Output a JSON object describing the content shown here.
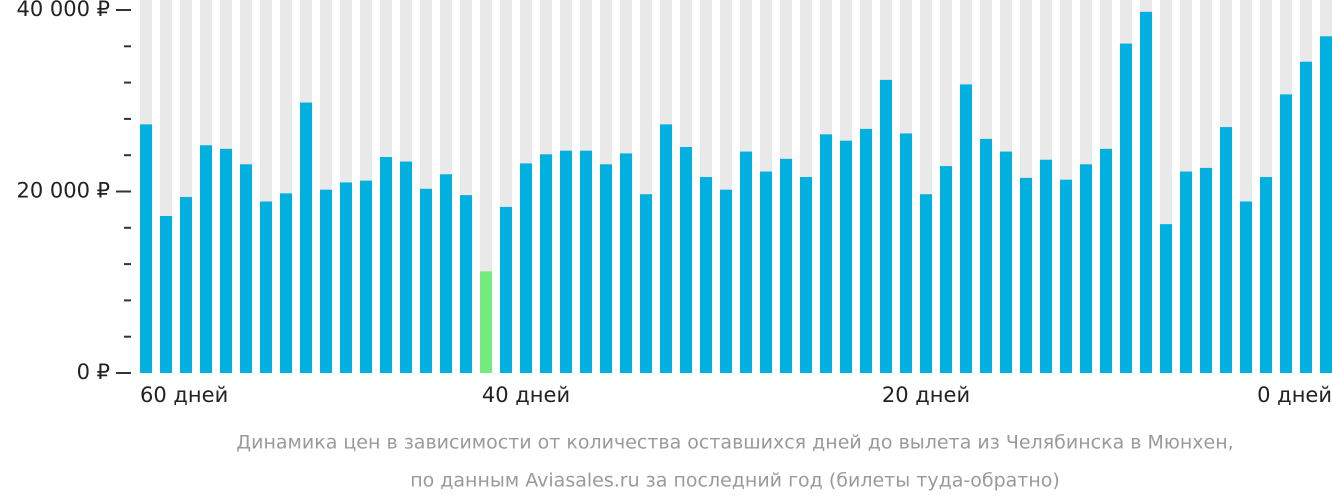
{
  "chart_data": {
    "type": "bar",
    "categories": [
      "60 дней",
      null,
      null,
      null,
      null,
      null,
      null,
      null,
      null,
      null,
      null,
      null,
      null,
      null,
      null,
      null,
      null,
      null,
      null,
      "40 дней",
      null,
      null,
      null,
      null,
      null,
      null,
      null,
      null,
      null,
      null,
      null,
      null,
      null,
      null,
      null,
      null,
      null,
      null,
      null,
      "20 дней",
      null,
      null,
      null,
      null,
      null,
      null,
      null,
      null,
      null,
      null,
      null,
      null,
      null,
      null,
      null,
      null,
      null,
      null,
      null,
      "0 дней"
    ],
    "values": [
      27400,
      17300,
      19400,
      25100,
      24700,
      23000,
      18900,
      19800,
      29800,
      20200,
      21000,
      21200,
      23800,
      23300,
      20300,
      21900,
      19600,
      11200,
      18300,
      23100,
      24100,
      24500,
      24500,
      23000,
      24200,
      19700,
      27400,
      24900,
      21600,
      20200,
      24400,
      22200,
      23600,
      21600,
      26300,
      25600,
      26900,
      32300,
      26400,
      19700,
      22800,
      31800,
      25800,
      24400,
      21500,
      23500,
      21300,
      23000,
      24700,
      36300,
      39800,
      16400,
      22200,
      22600,
      27100,
      18900,
      21600,
      30700,
      34300,
      37100
    ],
    "color": "#00b1e0",
    "highlight": {
      "index": 17,
      "color": "#73eb7d"
    },
    "background_color": "#e9e9e9",
    "ylim": [
      0,
      40000
    ],
    "yticks": [
      {
        "value": 0,
        "label": "0 ₽"
      },
      {
        "value": 20000,
        "label": "20 000 ₽"
      },
      {
        "value": 40000,
        "label": "40 000 ₽"
      }
    ],
    "minor_yticks": [
      4000,
      8000,
      12000,
      16000,
      24000,
      28000,
      32000,
      36000
    ],
    "caption": [
      "Динамика цен в зависимости от количества оставшихся дней до вылета из Челябинска в Мюнхен,",
      "по данным Aviasales.ru за последний год (билеты туда-обратно)"
    ]
  }
}
